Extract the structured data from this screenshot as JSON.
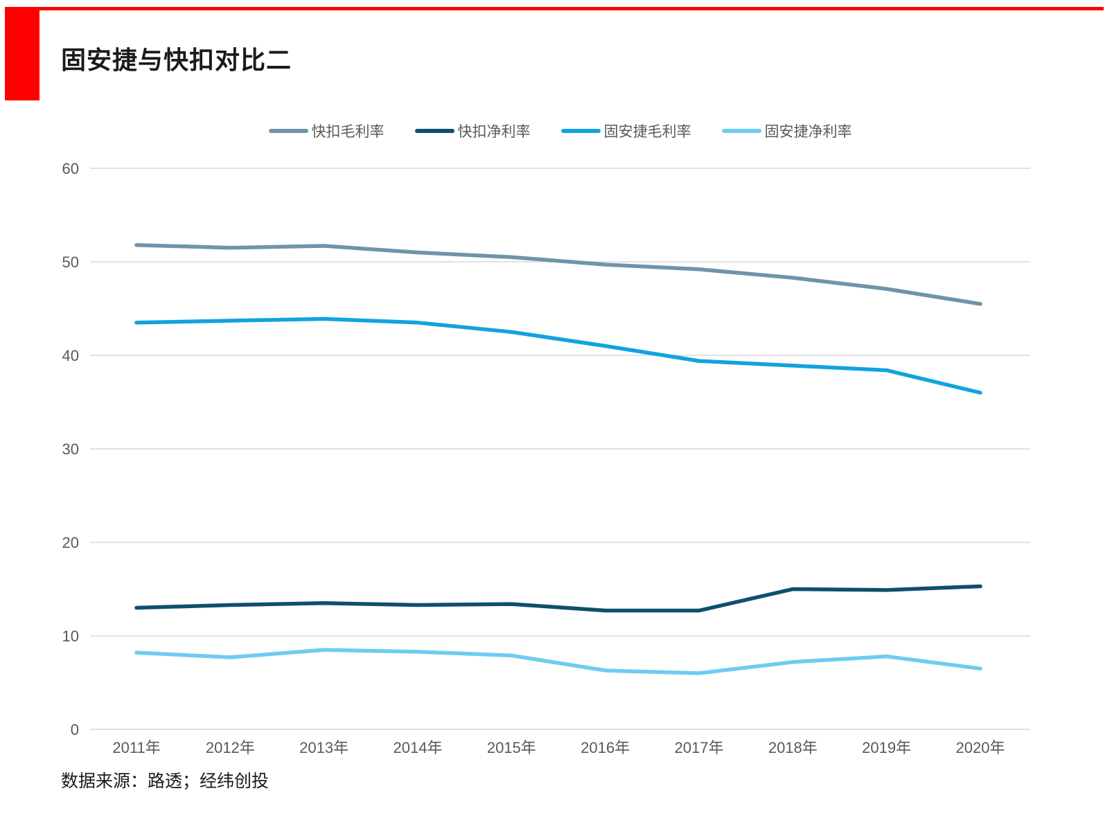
{
  "title": "固安捷与快扣对比二",
  "source_note": "数据来源：路透；经纬创投",
  "accent_red": "#FF0000",
  "axis": {
    "text_color": "#595959",
    "gridline_color": "#D9D9D9"
  },
  "chart_data": {
    "type": "line",
    "title": "固安捷与快扣对比二",
    "categories": [
      "2011年",
      "2012年",
      "2013年",
      "2014年",
      "2015年",
      "2016年",
      "2017年",
      "2018年",
      "2019年",
      "2020年"
    ],
    "series": [
      {
        "name": "快扣毛利率",
        "color": "#6E94A8",
        "values": [
          51.8,
          51.5,
          51.7,
          51.0,
          50.5,
          49.7,
          49.2,
          48.3,
          47.1,
          45.5
        ]
      },
      {
        "name": "快扣净利率",
        "color": "#0E4F6D",
        "values": [
          13.0,
          13.3,
          13.5,
          13.3,
          13.4,
          12.7,
          12.7,
          15.0,
          14.9,
          15.3
        ]
      },
      {
        "name": "固安捷毛利率",
        "color": "#12A2DE",
        "values": [
          43.5,
          43.7,
          43.9,
          43.5,
          42.5,
          41.0,
          39.4,
          38.9,
          38.4,
          36.0
        ]
      },
      {
        "name": "固安捷净利率",
        "color": "#70CBF1",
        "values": [
          8.2,
          7.7,
          8.5,
          8.3,
          7.9,
          6.3,
          6.0,
          7.2,
          7.8,
          6.5
        ]
      }
    ],
    "ylim": [
      0,
      60
    ],
    "yticks": [
      0,
      10,
      20,
      30,
      40,
      50,
      60
    ],
    "grid": true,
    "legend_position": "top",
    "xlabel": "",
    "ylabel": ""
  }
}
